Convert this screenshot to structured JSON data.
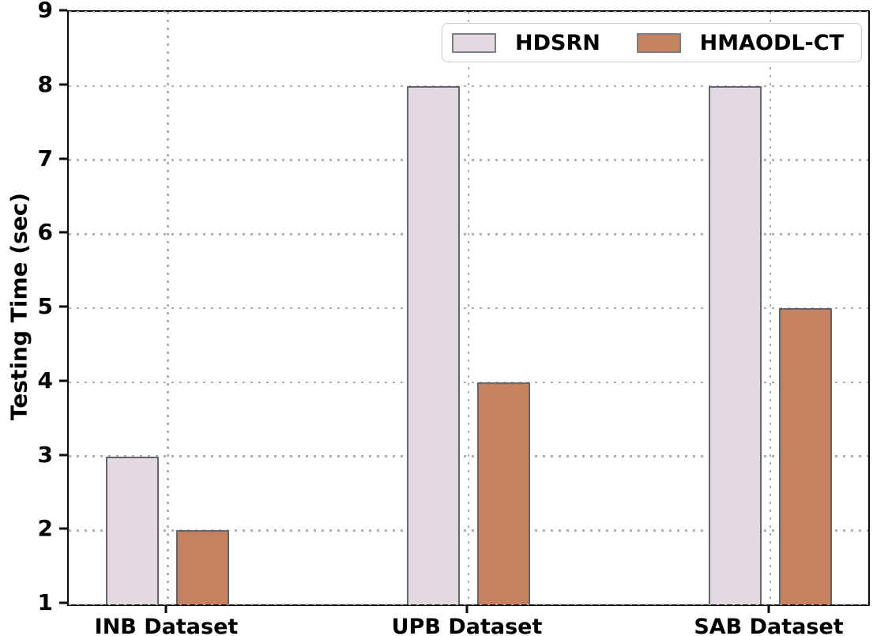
{
  "chart_data": {
    "type": "bar",
    "title": "",
    "categories": [
      "INB Dataset",
      "UPB Dataset",
      "SAB Dataset"
    ],
    "series": [
      {
        "name": "HDSRN",
        "color": "#e3dae1",
        "edge_color": "#62656e",
        "values": [
          3,
          8,
          8
        ]
      },
      {
        "name": "HMAODL-CT",
        "color": "#c6815e",
        "edge_color": "#62656e",
        "values": [
          2,
          4,
          5
        ]
      }
    ],
    "xlabel": "",
    "ylabel": "Testing Time (sec)",
    "ylim": [
      1,
      9
    ],
    "yticks": [
      1,
      2,
      3,
      4,
      5,
      6,
      7,
      8,
      9
    ],
    "grid": "dotted, both axes",
    "grid_color": "#b0b0b0",
    "legend_position": "upper right",
    "background_color": "#ffffff",
    "axis_color": "#0a0a0a",
    "text_color": "#000000"
  }
}
